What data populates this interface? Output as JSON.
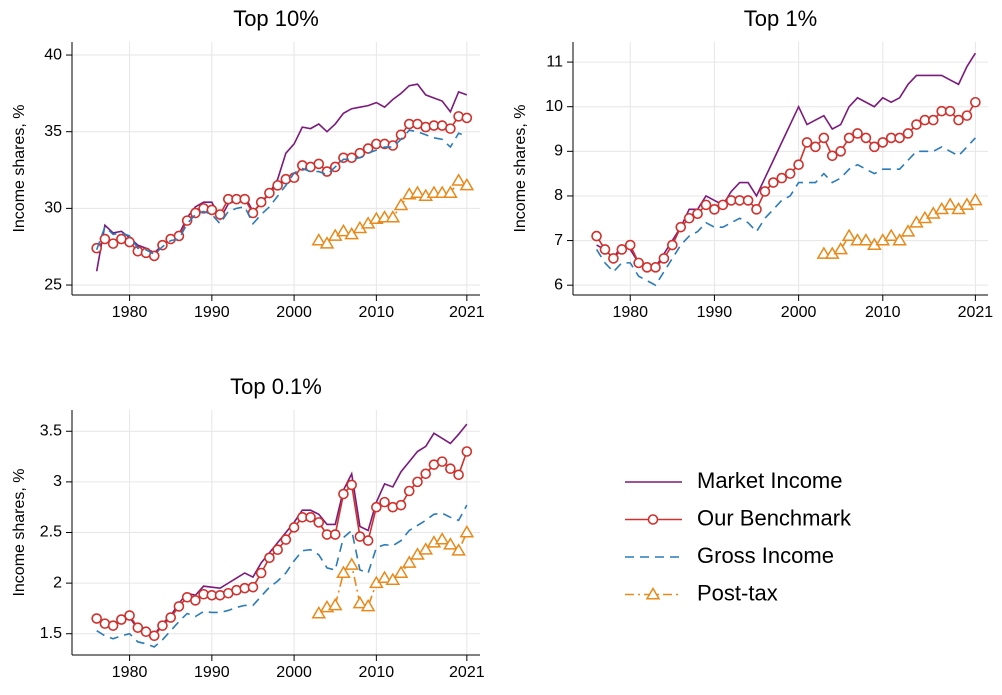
{
  "chart_data": [
    {
      "type": "line",
      "title": "Top 10%",
      "y_label": "Income shares, %",
      "x": [
        1976,
        1977,
        1978,
        1979,
        1980,
        1981,
        1982,
        1983,
        1984,
        1985,
        1986,
        1987,
        1988,
        1989,
        1990,
        1991,
        1992,
        1993,
        1994,
        1995,
        1996,
        1997,
        1998,
        1999,
        2000,
        2001,
        2002,
        2003,
        2004,
        2005,
        2006,
        2007,
        2008,
        2009,
        2010,
        2011,
        2012,
        2013,
        2014,
        2015,
        2016,
        2017,
        2018,
        2019,
        2020,
        2021
      ],
      "xlim": [
        1973,
        2022.6
      ],
      "xticks": [
        1980,
        1990,
        2000,
        2010,
        2021
      ],
      "ylim": [
        24.35,
        40.85
      ],
      "yticks": [
        25,
        30,
        35,
        40
      ],
      "grid": true,
      "series": [
        {
          "name": "Market Income",
          "color": "#7b1a7b",
          "values": [
            25.9,
            28.9,
            28.4,
            28.5,
            28.1,
            27.6,
            27.4,
            27.1,
            27.6,
            28.0,
            28.3,
            29.4,
            30.1,
            30.4,
            30.4,
            29.3,
            30.3,
            30.5,
            30.8,
            29.8,
            30.3,
            31.0,
            31.9,
            33.6,
            34.2,
            35.3,
            35.2,
            35.5,
            35.0,
            35.5,
            36.2,
            36.5,
            36.6,
            36.7,
            36.9,
            36.6,
            37.1,
            37.5,
            38.0,
            38.1,
            37.4,
            37.2,
            37.0,
            36.3,
            37.6,
            37.4
          ]
        },
        {
          "name": "Our Benchmark",
          "color": "#d0312d",
          "values": [
            27.4,
            28.0,
            27.7,
            28.0,
            27.8,
            27.2,
            27.1,
            26.9,
            27.6,
            28.0,
            28.2,
            29.2,
            29.7,
            30.0,
            29.9,
            29.6,
            30.6,
            30.6,
            30.6,
            29.7,
            30.4,
            31.0,
            31.5,
            31.9,
            32.0,
            32.8,
            32.7,
            32.9,
            32.4,
            32.7,
            33.3,
            33.3,
            33.6,
            33.9,
            34.2,
            34.2,
            34.1,
            34.8,
            35.5,
            35.5,
            35.3,
            35.4,
            35.4,
            35.2,
            36.0,
            35.9
          ]
        },
        {
          "name": "Gross Income",
          "color": "#2b7bb9",
          "values": [
            27.3,
            28.8,
            28.3,
            28.4,
            28.2,
            27.4,
            27.3,
            27.0,
            27.5,
            27.9,
            28.0,
            29.0,
            29.6,
            29.8,
            29.6,
            29.0,
            29.8,
            30.0,
            30.1,
            29.0,
            29.6,
            30.1,
            30.8,
            31.5,
            32.3,
            32.6,
            32.4,
            32.4,
            32.2,
            32.7,
            33.2,
            33.2,
            33.3,
            33.6,
            33.8,
            34.0,
            34.0,
            34.5,
            35.1,
            35.0,
            34.8,
            34.6,
            34.5,
            34.0,
            34.9,
            34.7
          ]
        },
        {
          "name": "Post-tax",
          "color": "#e8891a",
          "values": [
            null,
            null,
            null,
            null,
            null,
            null,
            null,
            null,
            null,
            null,
            null,
            null,
            null,
            null,
            null,
            null,
            null,
            null,
            null,
            null,
            null,
            null,
            null,
            null,
            null,
            null,
            null,
            27.9,
            27.7,
            28.2,
            28.5,
            28.3,
            28.7,
            29.0,
            29.3,
            29.4,
            29.4,
            30.2,
            30.9,
            31.0,
            30.8,
            31.0,
            31.0,
            31.0,
            31.8,
            31.5
          ]
        }
      ]
    },
    {
      "type": "line",
      "title": "Top 1%",
      "y_label": "Income shares, %",
      "x": [
        1976,
        1977,
        1978,
        1979,
        1980,
        1981,
        1982,
        1983,
        1984,
        1985,
        1986,
        1987,
        1988,
        1989,
        1990,
        1991,
        1992,
        1993,
        1994,
        1995,
        1996,
        1997,
        1998,
        1999,
        2000,
        2001,
        2002,
        2003,
        2004,
        2005,
        2006,
        2007,
        2008,
        2009,
        2010,
        2011,
        2012,
        2013,
        2014,
        2015,
        2016,
        2017,
        2018,
        2019,
        2020,
        2021
      ],
      "xlim": [
        1973.2,
        2022.5
      ],
      "xticks": [
        1980,
        1990,
        2000,
        2010,
        2021
      ],
      "ylim": [
        5.78,
        11.45
      ],
      "yticks": [
        6,
        7,
        8,
        9,
        10,
        11
      ],
      "grid": true,
      "series": [
        {
          "name": "Market Income",
          "color": "#7b1a7b",
          "values": [
            6.9,
            6.8,
            6.6,
            6.9,
            6.8,
            6.5,
            6.4,
            6.4,
            6.7,
            7.0,
            7.3,
            7.7,
            7.7,
            8.0,
            7.9,
            7.8,
            8.1,
            8.3,
            8.3,
            8.0,
            8.4,
            8.8,
            9.2,
            9.6,
            10.0,
            9.6,
            9.7,
            9.8,
            9.5,
            9.6,
            10.0,
            10.2,
            10.1,
            10.0,
            10.2,
            10.1,
            10.2,
            10.5,
            10.7,
            10.7,
            10.7,
            10.7,
            10.6,
            10.5,
            10.9,
            11.2
          ]
        },
        {
          "name": "Our Benchmark",
          "color": "#d0312d",
          "values": [
            7.1,
            6.8,
            6.6,
            6.8,
            6.9,
            6.5,
            6.4,
            6.4,
            6.6,
            6.9,
            7.3,
            7.5,
            7.6,
            7.8,
            7.7,
            7.8,
            7.9,
            7.9,
            7.9,
            7.7,
            8.1,
            8.3,
            8.4,
            8.5,
            8.7,
            9.2,
            9.1,
            9.3,
            8.9,
            9.0,
            9.3,
            9.4,
            9.3,
            9.1,
            9.2,
            9.3,
            9.3,
            9.4,
            9.6,
            9.7,
            9.7,
            9.9,
            9.9,
            9.7,
            9.8,
            10.1
          ]
        },
        {
          "name": "Gross Income",
          "color": "#2b7bb9",
          "values": [
            6.8,
            6.5,
            6.3,
            6.5,
            6.5,
            6.2,
            6.1,
            6.0,
            6.3,
            6.6,
            6.9,
            7.1,
            7.2,
            7.4,
            7.3,
            7.3,
            7.4,
            7.5,
            7.4,
            7.2,
            7.5,
            7.7,
            7.9,
            8.0,
            8.3,
            8.3,
            8.3,
            8.5,
            8.3,
            8.4,
            8.6,
            8.7,
            8.6,
            8.5,
            8.6,
            8.6,
            8.6,
            8.8,
            9.0,
            9.0,
            9.0,
            9.1,
            9.0,
            8.9,
            9.1,
            9.3
          ]
        },
        {
          "name": "Post-tax",
          "color": "#e8891a",
          "values": [
            null,
            null,
            null,
            null,
            null,
            null,
            null,
            null,
            null,
            null,
            null,
            null,
            null,
            null,
            null,
            null,
            null,
            null,
            null,
            null,
            null,
            null,
            null,
            null,
            null,
            null,
            null,
            6.7,
            6.7,
            6.8,
            7.1,
            7.0,
            7.0,
            6.9,
            7.0,
            7.1,
            7.0,
            7.2,
            7.4,
            7.5,
            7.6,
            7.7,
            7.8,
            7.7,
            7.8,
            7.9
          ]
        }
      ]
    },
    {
      "type": "line",
      "title": "Top 0.1%",
      "y_label": "Income shares, %",
      "x": [
        1976,
        1977,
        1978,
        1979,
        1980,
        1981,
        1982,
        1983,
        1984,
        1985,
        1986,
        1987,
        1988,
        1989,
        1990,
        1991,
        1992,
        1993,
        1994,
        1995,
        1996,
        1997,
        1998,
        1999,
        2000,
        2001,
        2002,
        2003,
        2004,
        2005,
        2006,
        2007,
        2008,
        2009,
        2010,
        2011,
        2012,
        2013,
        2014,
        2015,
        2016,
        2017,
        2018,
        2019,
        2020,
        2021
      ],
      "xlim": [
        1973,
        2022.6
      ],
      "xticks": [
        1980,
        1990,
        2000,
        2010,
        2021
      ],
      "ylim": [
        1.29,
        3.71
      ],
      "yticks": [
        1.5,
        2,
        2.5,
        3,
        3.5
      ],
      "grid": true,
      "series": [
        {
          "name": "Market Income",
          "color": "#7b1a7b",
          "values": [
            1.64,
            1.6,
            1.58,
            1.62,
            1.66,
            1.55,
            1.52,
            1.49,
            1.6,
            1.68,
            1.8,
            1.9,
            1.88,
            1.97,
            1.96,
            1.95,
            2.0,
            2.05,
            2.1,
            2.06,
            2.2,
            2.3,
            2.4,
            2.5,
            2.6,
            2.72,
            2.72,
            2.68,
            2.58,
            2.58,
            2.92,
            3.08,
            2.56,
            2.52,
            2.8,
            2.98,
            2.95,
            3.1,
            3.2,
            3.3,
            3.35,
            3.48,
            3.43,
            3.38,
            3.47,
            3.57
          ]
        },
        {
          "name": "Our Benchmark",
          "color": "#d0312d",
          "values": [
            1.65,
            1.6,
            1.58,
            1.64,
            1.68,
            1.56,
            1.52,
            1.48,
            1.58,
            1.66,
            1.77,
            1.86,
            1.83,
            1.89,
            1.88,
            1.88,
            1.9,
            1.93,
            1.95,
            1.96,
            2.1,
            2.25,
            2.33,
            2.43,
            2.55,
            2.65,
            2.65,
            2.6,
            2.48,
            2.48,
            2.88,
            2.97,
            2.46,
            2.42,
            2.75,
            2.8,
            2.75,
            2.77,
            2.91,
            3.0,
            3.08,
            3.17,
            3.2,
            3.13,
            3.07,
            3.3
          ]
        },
        {
          "name": "Gross Income",
          "color": "#2b7bb9",
          "values": [
            1.53,
            1.48,
            1.45,
            1.48,
            1.5,
            1.42,
            1.4,
            1.37,
            1.44,
            1.53,
            1.62,
            1.7,
            1.67,
            1.72,
            1.71,
            1.71,
            1.73,
            1.76,
            1.78,
            1.78,
            1.87,
            1.96,
            2.02,
            2.1,
            2.22,
            2.32,
            2.33,
            2.28,
            2.15,
            2.13,
            2.45,
            2.52,
            2.13,
            2.1,
            2.35,
            2.38,
            2.37,
            2.42,
            2.52,
            2.57,
            2.62,
            2.68,
            2.69,
            2.65,
            2.62,
            2.77
          ]
        },
        {
          "name": "Post-tax",
          "color": "#e8891a",
          "values": [
            null,
            null,
            null,
            null,
            null,
            null,
            null,
            null,
            null,
            null,
            null,
            null,
            null,
            null,
            null,
            null,
            null,
            null,
            null,
            null,
            null,
            null,
            null,
            null,
            null,
            null,
            null,
            1.7,
            1.76,
            1.78,
            2.1,
            2.18,
            1.8,
            1.77,
            2.0,
            2.05,
            2.03,
            2.1,
            2.2,
            2.28,
            2.33,
            2.4,
            2.43,
            2.38,
            2.32,
            2.5
          ]
        }
      ]
    }
  ]
}
